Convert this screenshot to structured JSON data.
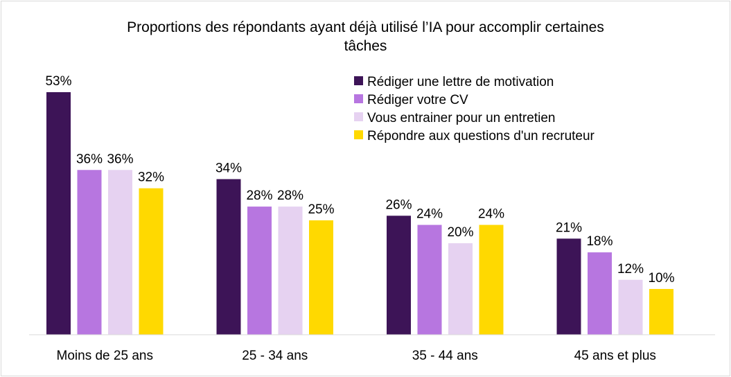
{
  "chart_data": {
    "type": "bar",
    "title": "Proportions des répondants ayant déjà utilisé l’IA pour accomplir certaines tâches",
    "title_lines": [
      "Proportions des répondants ayant déjà utilisé l’IA pour accomplir certaines",
      "tâches"
    ],
    "categories": [
      "Moins de 25 ans",
      "25 - 34 ans",
      "35 - 44 ans",
      "45 ans et plus"
    ],
    "series": [
      {
        "name": "Rédiger une lettre de motivation",
        "color": "#3d1457",
        "values": [
          53,
          34,
          26,
          21
        ],
        "labels": [
          "53%",
          "34%",
          "26%",
          "21%"
        ]
      },
      {
        "name": "Rédiger votre CV",
        "color": "#b776e0",
        "values": [
          36,
          28,
          24,
          18
        ],
        "labels": [
          "36%",
          "28%",
          "24%",
          "18%"
        ]
      },
      {
        "name": "Vous entrainer pour un entretien",
        "color": "#e6d2f1",
        "values": [
          36,
          28,
          20,
          12
        ],
        "labels": [
          "36%",
          "28%",
          "20%",
          "12%"
        ]
      },
      {
        "name": "Répondre aux questions d'un recruteur",
        "color": "#ffd900",
        "values": [
          32,
          25,
          24,
          10
        ],
        "labels": [
          "32%",
          "25%",
          "24%",
          "10%"
        ]
      }
    ],
    "ylim": [
      0,
      53
    ],
    "unit": "%",
    "grid": false,
    "legend_position": "top-right"
  }
}
